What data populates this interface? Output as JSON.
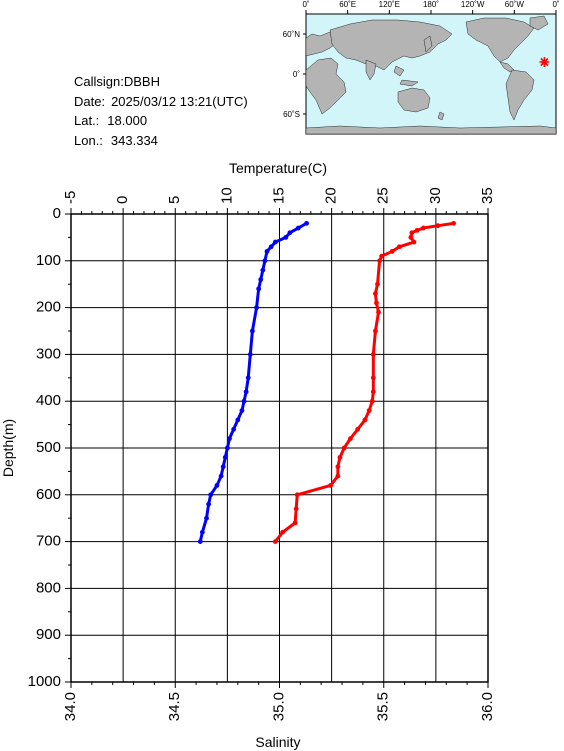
{
  "info": {
    "callsign_label": "Callsign:",
    "callsign": "DBBH",
    "date_label": "Date:",
    "date": "2025/03/12 13:21(UTC)",
    "lat_label": "Lat.:",
    "lat": "18.000",
    "lon_label": "Lon.:",
    "lon": "343.334"
  },
  "map": {
    "lon_ticks": [
      "0˚",
      "60˚E",
      "120˚E",
      "180˚",
      "120˚W",
      "60˚W",
      "0˚"
    ],
    "lat_ticks": [
      "60˚N",
      "0˚",
      "60˚S"
    ],
    "ocean_color": "#d2f5fa",
    "land_color": "#b4b4b4",
    "marker_color": "#ff0000",
    "marker": {
      "lat": 18.0,
      "lon": 343.334
    }
  },
  "chart_data": {
    "type": "scatter",
    "xlabel_top": "Temperature(C)",
    "xlabel_bottom": "Salinity",
    "ylabel": "Depth(m)",
    "temp_range": [
      -5,
      35
    ],
    "sal_range": [
      34.0,
      36.0
    ],
    "depth_range": [
      0,
      1000
    ],
    "temp_ticks": [
      "-5",
      "0",
      "5",
      "10",
      "15",
      "20",
      "25",
      "30",
      "35"
    ],
    "sal_ticks": [
      "34.0",
      "34.5",
      "35.0",
      "35.5",
      "36.0"
    ],
    "depth_ticks": [
      "0",
      "100",
      "200",
      "300",
      "400",
      "500",
      "600",
      "700",
      "800",
      "900",
      "1000"
    ],
    "grid": true,
    "series": [
      {
        "key": "temperature",
        "color": "#ff0000",
        "depth": [
          20,
          25,
          30,
          35,
          40,
          50,
          60,
          70,
          80,
          90,
          100,
          150,
          170,
          190,
          210,
          250,
          300,
          350,
          380,
          400,
          420,
          440,
          460,
          480,
          500,
          520,
          540,
          560,
          580,
          600,
          630,
          660,
          680,
          700
        ],
        "values": [
          31.7,
          30.2,
          28.8,
          28.2,
          27.7,
          27.6,
          27.9,
          26.5,
          25.8,
          24.8,
          24.6,
          24.4,
          24.2,
          24.3,
          24.5,
          24.2,
          24.0,
          24.0,
          24.0,
          23.9,
          23.6,
          23.2,
          22.5,
          21.8,
          21.2,
          20.8,
          20.6,
          20.6,
          19.9,
          16.7,
          16.6,
          16.5,
          15.3,
          14.6
        ]
      },
      {
        "key": "salinity",
        "color": "#0000ff",
        "depth": [
          20,
          30,
          40,
          50,
          60,
          70,
          80,
          100,
          120,
          140,
          160,
          200,
          250,
          300,
          350,
          380,
          400,
          420,
          440,
          460,
          480,
          500,
          520,
          540,
          560,
          580,
          600,
          620,
          650,
          680,
          700
        ],
        "values": [
          35.13,
          35.09,
          35.05,
          35.03,
          34.98,
          34.96,
          34.94,
          34.93,
          34.92,
          34.91,
          34.9,
          34.89,
          34.87,
          34.86,
          34.85,
          34.84,
          34.83,
          34.82,
          34.8,
          34.78,
          34.76,
          34.75,
          34.74,
          34.73,
          34.72,
          34.7,
          34.67,
          34.66,
          34.65,
          34.63,
          34.62
        ]
      }
    ]
  }
}
